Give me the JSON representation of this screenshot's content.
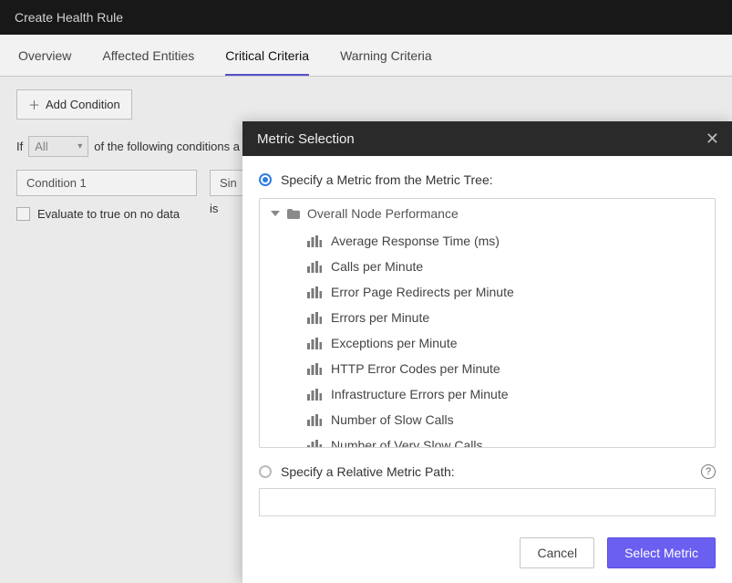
{
  "window": {
    "title": "Create Health Rule"
  },
  "tabs": [
    {
      "label": "Overview",
      "active": false
    },
    {
      "label": "Affected Entities",
      "active": false
    },
    {
      "label": "Critical Criteria",
      "active": true
    },
    {
      "label": "Warning Criteria",
      "active": false
    }
  ],
  "page": {
    "add_condition_label": "Add Condition",
    "if_prefix": "If",
    "scope_selector_value": "All",
    "if_suffix": "of the following conditions a",
    "condition_name_value": "Condition 1",
    "condition_type_value": "Sin",
    "evaluate_checkbox_label": "Evaluate to true on no data",
    "is_label": "is"
  },
  "modal": {
    "title": "Metric Selection",
    "option_tree_label": "Specify a Metric from the Metric Tree:",
    "tree_root_label": "Overall Node Performance",
    "metrics": [
      "Average Response Time (ms)",
      "Calls per Minute",
      "Error Page Redirects per Minute",
      "Errors per Minute",
      "Exceptions per Minute",
      "HTTP Error Codes per Minute",
      "Infrastructure Errors per Minute",
      "Number of Slow Calls",
      "Number of Very Slow Calls"
    ],
    "option_path_label": "Specify a Relative Metric Path:",
    "path_value": "",
    "cancel_label": "Cancel",
    "submit_label": "Select Metric"
  },
  "colors": {
    "accent_tab": "#5c55d6",
    "primary_button": "#6a5ff0",
    "radio_selected": "#2f7de1",
    "titlebar_bg": "#1a1a1a",
    "modal_header_bg": "#2a2a2a"
  }
}
